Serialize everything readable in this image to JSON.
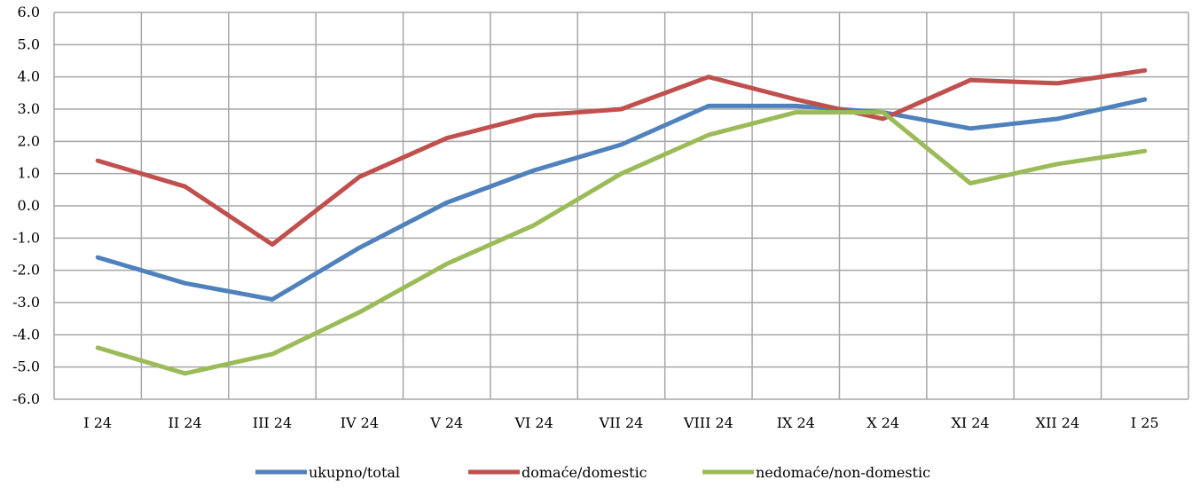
{
  "chart_data": {
    "type": "line",
    "title": "",
    "xlabel": "",
    "ylabel": "",
    "categories": [
      "I 24",
      "II 24",
      "III 24",
      "IV 24",
      "V 24",
      "VI 24",
      "VII 24",
      "VIII 24",
      "IX 24",
      "X 24",
      "XI 24",
      "XII 24",
      "I 25"
    ],
    "ylim": [
      -6.0,
      6.0
    ],
    "yticks": [
      "6.0",
      "5.0",
      "4.0",
      "3.0",
      "2.0",
      "1.0",
      "0.0",
      "-1.0",
      "-2.0",
      "-3.0",
      "-4.0",
      "-5.0",
      "-6.0"
    ],
    "grid": true,
    "legend_position": "bottom",
    "series": [
      {
        "name": "ukupno/total",
        "color": "#4F81BD",
        "values": [
          -1.6,
          -2.4,
          -2.9,
          -1.3,
          0.1,
          1.1,
          1.9,
          3.1,
          3.1,
          2.9,
          2.4,
          2.7,
          3.3
        ]
      },
      {
        "name": "domaće/domestic",
        "color": "#C0504D",
        "values": [
          1.4,
          0.6,
          -1.2,
          0.9,
          2.1,
          2.8,
          3.0,
          4.0,
          3.3,
          2.7,
          3.9,
          3.8,
          4.2
        ]
      },
      {
        "name": "nedomaće/non-domestic",
        "color": "#9BBB59",
        "values": [
          -4.4,
          -5.2,
          -4.6,
          -3.3,
          -1.8,
          -0.6,
          1.0,
          2.2,
          2.9,
          2.9,
          0.7,
          1.3,
          1.7
        ]
      }
    ]
  }
}
